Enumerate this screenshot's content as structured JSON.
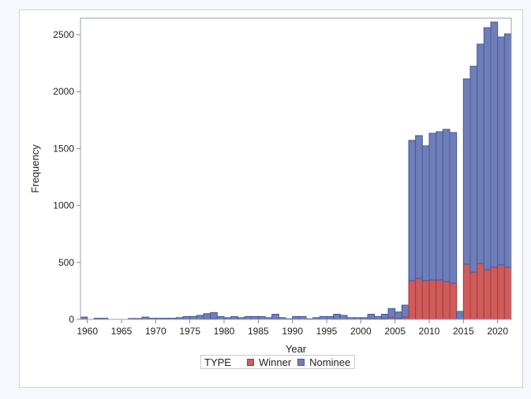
{
  "chart_data": {
    "type": "bar",
    "stacked": true,
    "title": "",
    "xlabel": "Year",
    "ylabel": "Frequency",
    "xlim": [
      1959,
      2022
    ],
    "ylim": [
      0,
      2650
    ],
    "x_ticks": [
      1960,
      1965,
      1970,
      1975,
      1980,
      1985,
      1990,
      1995,
      2000,
      2005,
      2010,
      2015,
      2020
    ],
    "x_tick_labels": [
      "1960",
      "1965",
      "1970",
      "1975",
      "1980",
      "1985",
      "1990",
      "1995",
      "2000",
      "2005",
      "2010",
      "2015",
      "2020"
    ],
    "y_ticks": [
      0,
      500,
      1000,
      1500,
      2000,
      2500
    ],
    "y_tick_labels": [
      "0",
      "500",
      "1000",
      "1500",
      "2000",
      "2500"
    ],
    "grid": false,
    "legend": {
      "title": "TYPE",
      "placement": "bottom",
      "entries": [
        "Winner",
        "Nominee"
      ]
    },
    "categories": [
      1959,
      1960,
      1961,
      1962,
      1963,
      1964,
      1965,
      1966,
      1967,
      1968,
      1969,
      1970,
      1971,
      1972,
      1973,
      1974,
      1975,
      1976,
      1977,
      1978,
      1979,
      1980,
      1981,
      1982,
      1983,
      1984,
      1985,
      1986,
      1987,
      1988,
      1989,
      1990,
      1991,
      1992,
      1993,
      1994,
      1995,
      1996,
      1997,
      1998,
      1999,
      2000,
      2001,
      2002,
      2003,
      2004,
      2005,
      2006,
      2007,
      2008,
      2009,
      2010,
      2011,
      2012,
      2013,
      2014,
      2015,
      2016,
      2017,
      2018,
      2019,
      2020,
      2021
    ],
    "series": [
      {
        "name": "Winner",
        "color": "#d05b5b",
        "values": [
          0,
          0,
          0,
          0,
          0,
          0,
          0,
          0,
          0,
          0,
          0,
          0,
          0,
          0,
          0,
          0,
          0,
          0,
          3,
          5,
          0,
          0,
          0,
          0,
          0,
          0,
          0,
          0,
          3,
          0,
          0,
          0,
          0,
          0,
          0,
          0,
          0,
          3,
          0,
          0,
          0,
          0,
          5,
          3,
          8,
          15,
          10,
          20,
          340,
          360,
          340,
          346,
          346,
          332,
          318,
          0,
          485,
          415,
          492,
          436,
          457,
          478,
          457
        ]
      },
      {
        "name": "Nominee",
        "color": "#6f7eb8",
        "values": [
          20,
          0,
          10,
          10,
          0,
          0,
          0,
          8,
          8,
          20,
          10,
          10,
          10,
          10,
          15,
          25,
          25,
          35,
          47,
          55,
          25,
          15,
          25,
          15,
          25,
          25,
          25,
          15,
          42,
          15,
          5,
          25,
          25,
          5,
          15,
          25,
          25,
          42,
          35,
          15,
          15,
          15,
          40,
          22,
          37,
          80,
          55,
          105,
          1232,
          1254,
          1184,
          1288,
          1302,
          1337,
          1323,
          70,
          1627,
          1808,
          1925,
          2126,
          2154,
          2001,
          2050
        ]
      }
    ]
  }
}
